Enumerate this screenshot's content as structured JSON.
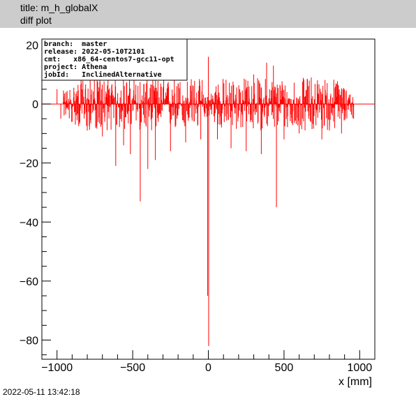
{
  "header": {
    "title": "title: m_h_globalX",
    "subtitle": "diff plot"
  },
  "footer": {
    "timestamp": "2022-05-11 13:42:18"
  },
  "info_box": {
    "lines": [
      "branch:  master",
      "release: 2022-05-10T2101",
      "cmt:   x86_64-centos7-gcc11-opt",
      "project: Athena",
      "jobId:   InclinedAlternative"
    ]
  },
  "colors": {
    "series": "#ff0000",
    "header_bg": "#cccccc",
    "axis": "#000000"
  },
  "chart_data": {
    "type": "bar",
    "xlabel": "x [mm]",
    "ylabel": "",
    "xlim": [
      -1100,
      1100
    ],
    "ylim": [
      -86.5,
      22
    ],
    "xticks": [
      -1000,
      -500,
      0,
      500,
      1000
    ],
    "xtick_labels": [
      "−1000",
      "−500",
      "0",
      "500",
      "1000"
    ],
    "yticks": [
      -80,
      -60,
      -40,
      -20,
      0,
      20
    ],
    "ytick_labels": [
      "−80",
      "−60",
      "−40",
      "−20",
      "0",
      "20"
    ],
    "baseline": 0,
    "bin_range": [
      -960,
      960
    ],
    "bin_count": 960,
    "typical_spread": [
      -9,
      9
    ],
    "notable_bins": [
      {
        "x": -1000,
        "y": 5
      },
      {
        "x": -975,
        "y": -5
      },
      {
        "x": -900,
        "y": -6
      },
      {
        "x": -800,
        "y": -9
      },
      {
        "x": -700,
        "y": -11
      },
      {
        "x": -612,
        "y": -21
      },
      {
        "x": -560,
        "y": -14
      },
      {
        "x": -515,
        "y": -17
      },
      {
        "x": -450,
        "y": -33
      },
      {
        "x": -400,
        "y": -22
      },
      {
        "x": -350,
        "y": -19
      },
      {
        "x": -250,
        "y": -16
      },
      {
        "x": -200,
        "y": 7
      },
      {
        "x": -150,
        "y": -13
      },
      {
        "x": -100,
        "y": 6
      },
      {
        "x": -50,
        "y": -12
      },
      {
        "x": -5,
        "y": -65
      },
      {
        "x": 0,
        "y": 16
      },
      {
        "x": 2,
        "y": -82
      },
      {
        "x": 60,
        "y": -12
      },
      {
        "x": 150,
        "y": -15
      },
      {
        "x": 250,
        "y": -16
      },
      {
        "x": 300,
        "y": 10
      },
      {
        "x": 350,
        "y": -17
      },
      {
        "x": 385,
        "y": 14
      },
      {
        "x": 430,
        "y": 13
      },
      {
        "x": 450,
        "y": -35
      },
      {
        "x": 500,
        "y": -12
      },
      {
        "x": 600,
        "y": -10
      },
      {
        "x": 680,
        "y": 9
      },
      {
        "x": 750,
        "y": -12
      },
      {
        "x": 800,
        "y": -9
      },
      {
        "x": 880,
        "y": -10
      },
      {
        "x": 930,
        "y": 3
      },
      {
        "x": 960,
        "y": -5
      }
    ],
    "grid": false,
    "legend": "none"
  }
}
